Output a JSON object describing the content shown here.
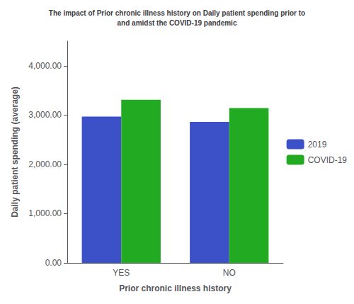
{
  "chart_data": {
    "type": "bar",
    "title": "The impact of Prior chronic illness history on Daily patient spending prior to\nand amidst the COVID-19 pandemic",
    "xlabel": "Prior chronic illness history",
    "ylabel": "Daily patient spending (average)",
    "categories": [
      "YES",
      "NO"
    ],
    "series": [
      {
        "name": "2019",
        "color": "#3c50c8",
        "values": [
          2970,
          2860
        ]
      },
      {
        "name": "COVID-19",
        "color": "#22aa22",
        "values": [
          3310,
          3140
        ]
      }
    ],
    "ylim": [
      0,
      4500
    ],
    "yticks": [
      {
        "value": 0,
        "label": "0.00"
      },
      {
        "value": 1000,
        "label": "1,000.00"
      },
      {
        "value": 2000,
        "label": "2,000.00"
      },
      {
        "value": 3000,
        "label": "3,000.00"
      },
      {
        "value": 4000,
        "label": "4,000.00"
      }
    ],
    "grid": false,
    "legend": "right"
  }
}
